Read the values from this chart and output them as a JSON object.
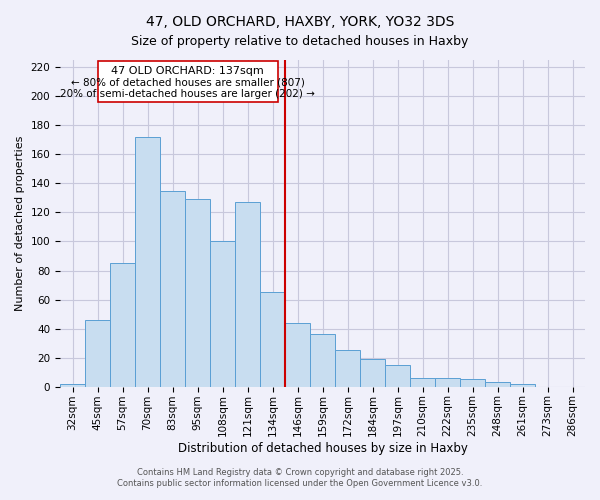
{
  "title": "47, OLD ORCHARD, HAXBY, YORK, YO32 3DS",
  "subtitle": "Size of property relative to detached houses in Haxby",
  "xlabel": "Distribution of detached houses by size in Haxby",
  "ylabel": "Number of detached properties",
  "categories": [
    "32sqm",
    "45sqm",
    "57sqm",
    "70sqm",
    "83sqm",
    "95sqm",
    "108sqm",
    "121sqm",
    "134sqm",
    "146sqm",
    "159sqm",
    "172sqm",
    "184sqm",
    "197sqm",
    "210sqm",
    "222sqm",
    "235sqm",
    "248sqm",
    "261sqm",
    "273sqm",
    "286sqm"
  ],
  "values": [
    2,
    46,
    85,
    172,
    135,
    129,
    100,
    127,
    65,
    44,
    36,
    25,
    19,
    15,
    6,
    6,
    5,
    3,
    2,
    0,
    0
  ],
  "bar_color": "#c8ddf0",
  "bar_edge_color": "#5a9fd4",
  "vline_pos": 8.5,
  "vline_label": "47 OLD ORCHARD: 137sqm",
  "annotation_line2": "← 80% of detached houses are smaller (807)",
  "annotation_line3": "20% of semi-detached houses are larger (202) →",
  "vline_color": "#cc0000",
  "annotation_box_color": "#ffffff",
  "annotation_box_edge": "#cc0000",
  "ylim": [
    0,
    225
  ],
  "yticks": [
    0,
    20,
    40,
    60,
    80,
    100,
    120,
    140,
    160,
    180,
    200,
    220
  ],
  "footer1": "Contains HM Land Registry data © Crown copyright and database right 2025.",
  "footer2": "Contains public sector information licensed under the Open Government Licence v3.0.",
  "bg_color": "#f0f0fa",
  "grid_color": "#c8c8dc",
  "title_fontsize": 10,
  "subtitle_fontsize": 9,
  "xlabel_fontsize": 8.5,
  "ylabel_fontsize": 8,
  "tick_fontsize": 7.5,
  "footer_fontsize": 6,
  "annot_fontsize": 8
}
